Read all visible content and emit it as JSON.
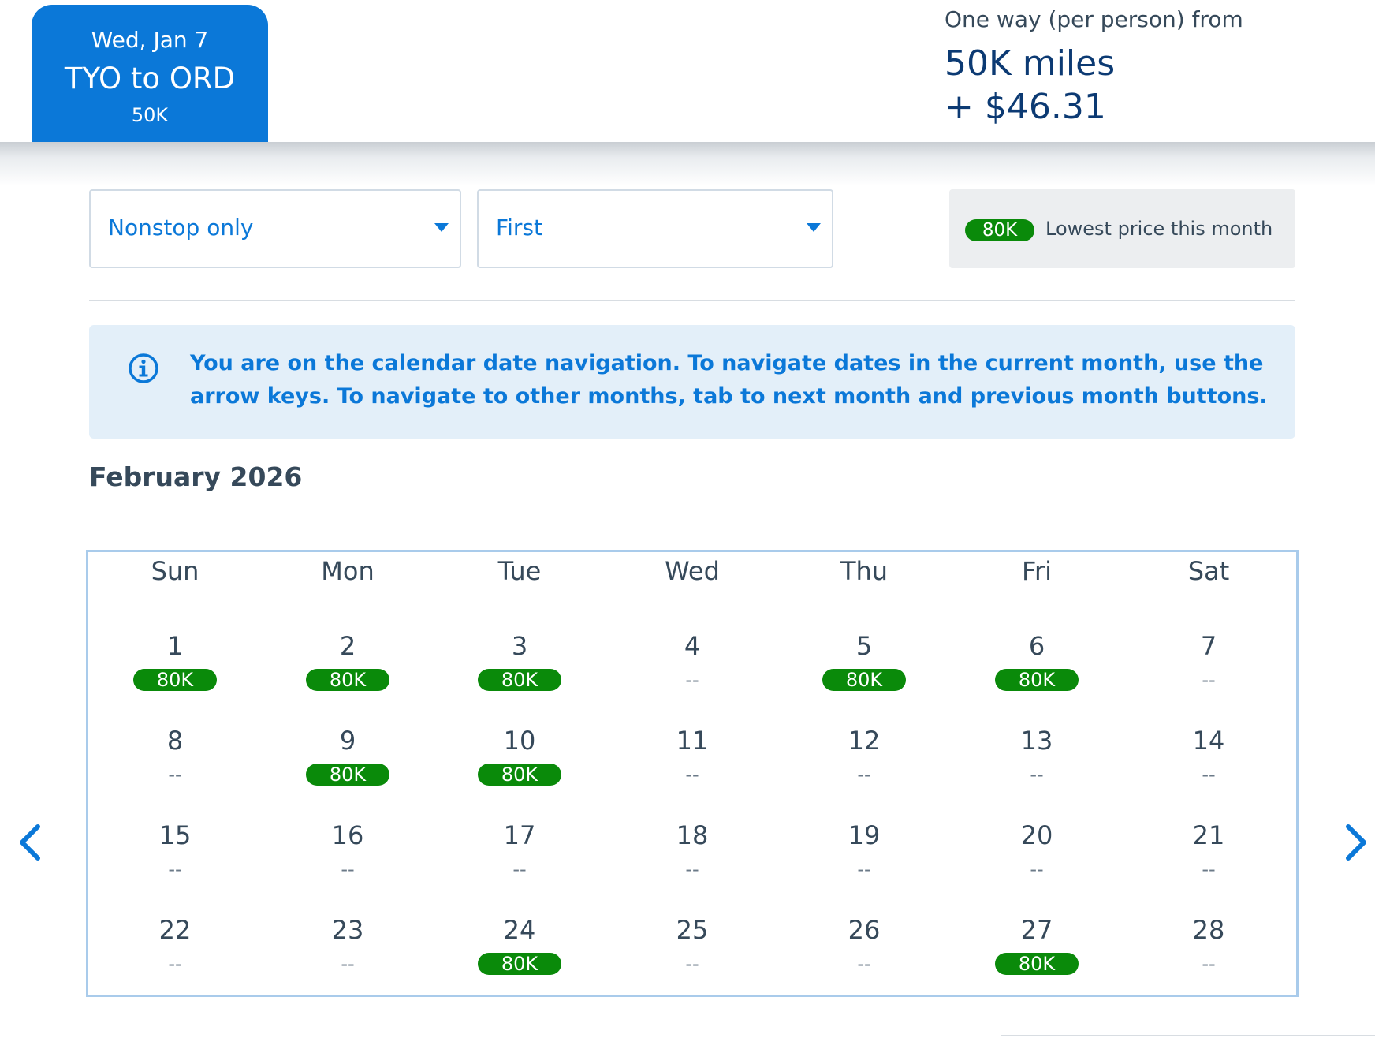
{
  "header": {
    "trip": {
      "date": "Wed, Jan 7",
      "route": "TYO to ORD",
      "price": "50K"
    },
    "fare": {
      "caption": "One way (per person) from",
      "miles": "50K miles",
      "taxes": "+ $46.31"
    }
  },
  "filters": {
    "stops": {
      "value": "Nonstop only"
    },
    "cabin": {
      "value": "First"
    }
  },
  "legend": {
    "badge": "80K",
    "text": "Lowest price this month"
  },
  "info": {
    "text": "You are on the calendar date navigation. To navigate dates in the current month, use the arrow keys. To navigate to other months, tab to next month and previous month buttons."
  },
  "calendar": {
    "month": "February 2026",
    "weekdays": [
      "Sun",
      "Mon",
      "Tue",
      "Wed",
      "Thu",
      "Fri",
      "Sat"
    ],
    "no_price": "--",
    "days": [
      {
        "day": "1",
        "price": "80K"
      },
      {
        "day": "2",
        "price": "80K"
      },
      {
        "day": "3",
        "price": "80K"
      },
      {
        "day": "4",
        "price": "--"
      },
      {
        "day": "5",
        "price": "80K"
      },
      {
        "day": "6",
        "price": "80K"
      },
      {
        "day": "7",
        "price": "--"
      },
      {
        "day": "8",
        "price": "--"
      },
      {
        "day": "9",
        "price": "80K"
      },
      {
        "day": "10",
        "price": "80K"
      },
      {
        "day": "11",
        "price": "--"
      },
      {
        "day": "12",
        "price": "--"
      },
      {
        "day": "13",
        "price": "--"
      },
      {
        "day": "14",
        "price": "--"
      },
      {
        "day": "15",
        "price": "--"
      },
      {
        "day": "16",
        "price": "--"
      },
      {
        "day": "17",
        "price": "--"
      },
      {
        "day": "18",
        "price": "--"
      },
      {
        "day": "19",
        "price": "--"
      },
      {
        "day": "20",
        "price": "--"
      },
      {
        "day": "21",
        "price": "--"
      },
      {
        "day": "22",
        "price": "--"
      },
      {
        "day": "23",
        "price": "--"
      },
      {
        "day": "24",
        "price": "80K"
      },
      {
        "day": "25",
        "price": "--"
      },
      {
        "day": "26",
        "price": "--"
      },
      {
        "day": "27",
        "price": "80K"
      },
      {
        "day": "28",
        "price": "--"
      }
    ]
  },
  "icons": {
    "info": "info-circle-icon",
    "caret": "caret-down-icon",
    "prev": "chevron-left-icon",
    "next": "chevron-right-icon"
  },
  "colors": {
    "brand_blue": "#0b78d8",
    "navy": "#0c3a73",
    "price_green": "#0a8a0a",
    "banner_bg": "#e3eff9",
    "calendar_border": "#a9cbeb"
  }
}
